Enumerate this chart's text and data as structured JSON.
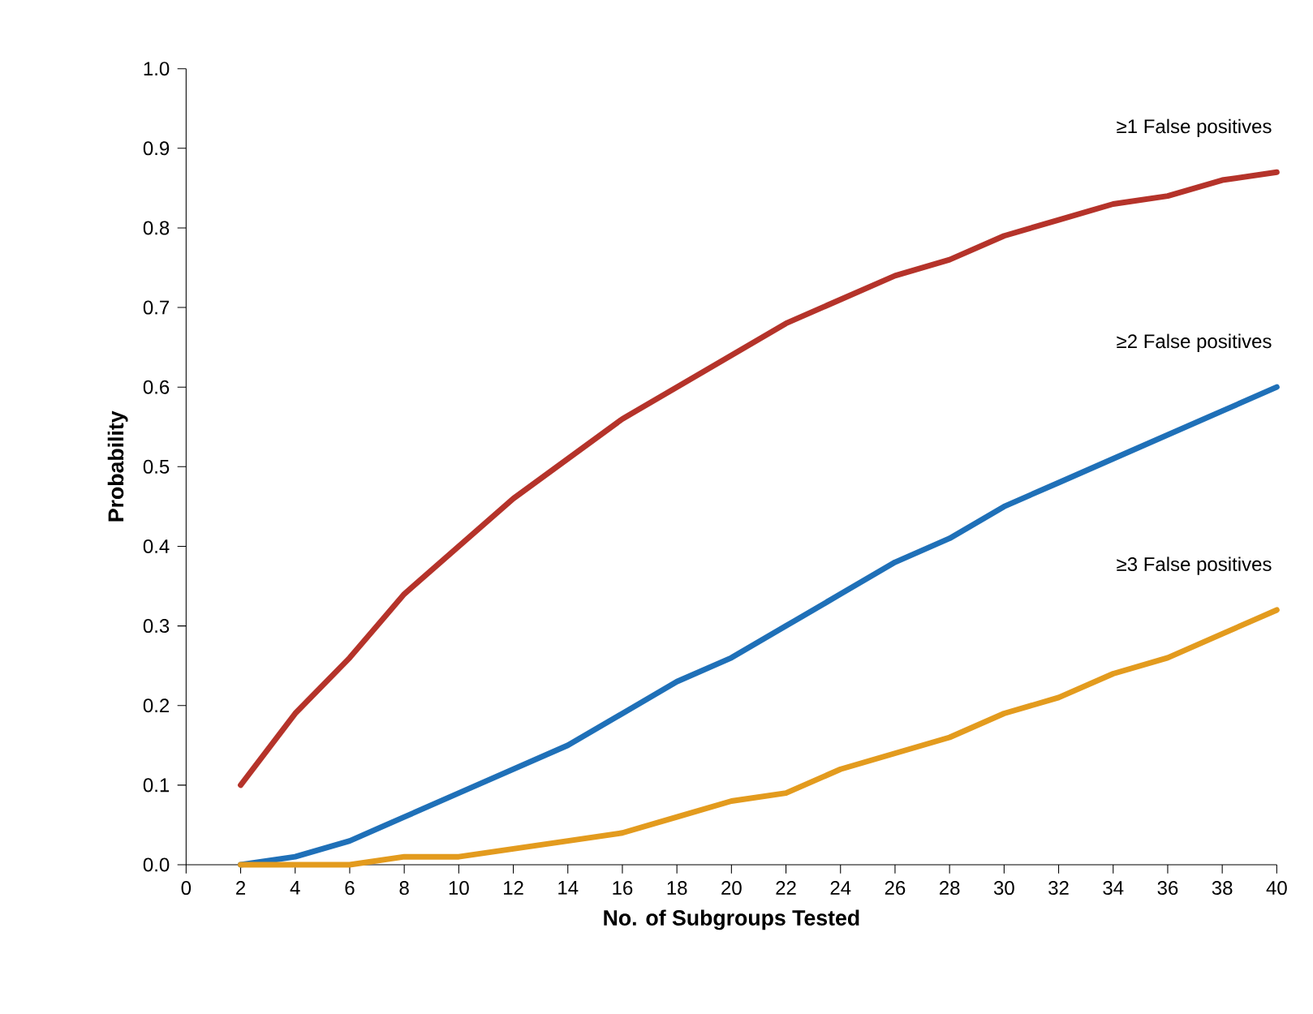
{
  "chart_data": {
    "type": "line",
    "xlabel": "No. of Subgroups Tested",
    "ylabel": "Probability",
    "x": [
      2,
      4,
      6,
      8,
      10,
      12,
      14,
      16,
      18,
      20,
      22,
      24,
      26,
      28,
      30,
      32,
      34,
      36,
      38,
      40
    ],
    "series": [
      {
        "name": "≥1 False positives",
        "color": "#b5332a",
        "values": [
          0.1,
          0.19,
          0.26,
          0.34,
          0.4,
          0.46,
          0.51,
          0.56,
          0.6,
          0.64,
          0.68,
          0.71,
          0.74,
          0.76,
          0.79,
          0.81,
          0.83,
          0.84,
          0.86,
          0.87
        ]
      },
      {
        "name": "≥2 False positives",
        "color": "#1f70b8",
        "values": [
          0.0,
          0.01,
          0.03,
          0.06,
          0.09,
          0.12,
          0.15,
          0.19,
          0.23,
          0.26,
          0.3,
          0.34,
          0.38,
          0.41,
          0.45,
          0.48,
          0.51,
          0.54,
          0.57,
          0.6
        ]
      },
      {
        "name": "≥3 False positives",
        "color": "#e39b1e",
        "values": [
          0.0,
          0.0,
          0.0,
          0.01,
          0.01,
          0.02,
          0.03,
          0.04,
          0.06,
          0.08,
          0.09,
          0.12,
          0.14,
          0.16,
          0.19,
          0.21,
          0.24,
          0.26,
          0.29,
          0.32
        ]
      }
    ],
    "xlim": [
      0,
      40
    ],
    "xticks": [
      0,
      2,
      4,
      6,
      8,
      10,
      12,
      14,
      16,
      18,
      20,
      22,
      24,
      26,
      28,
      30,
      32,
      34,
      36,
      38,
      40
    ],
    "ylim": [
      0,
      1
    ],
    "yticks": [
      {
        "value": 0,
        "label": "0.0"
      },
      {
        "value": 0.1,
        "label": "0.1"
      },
      {
        "value": 0.2,
        "label": "0.2"
      },
      {
        "value": 0.3,
        "label": "0.3"
      },
      {
        "value": 0.4,
        "label": "0.4"
      },
      {
        "value": 0.5,
        "label": "0.5"
      },
      {
        "value": 0.6,
        "label": "0.6"
      },
      {
        "value": 0.7,
        "label": "0.7"
      },
      {
        "value": 0.8,
        "label": "0.8"
      },
      {
        "value": 0.9,
        "label": "0.9"
      },
      {
        "value": 1,
        "label": "1.0"
      }
    ],
    "grid": false,
    "marker": "none",
    "line_style": "solid"
  }
}
